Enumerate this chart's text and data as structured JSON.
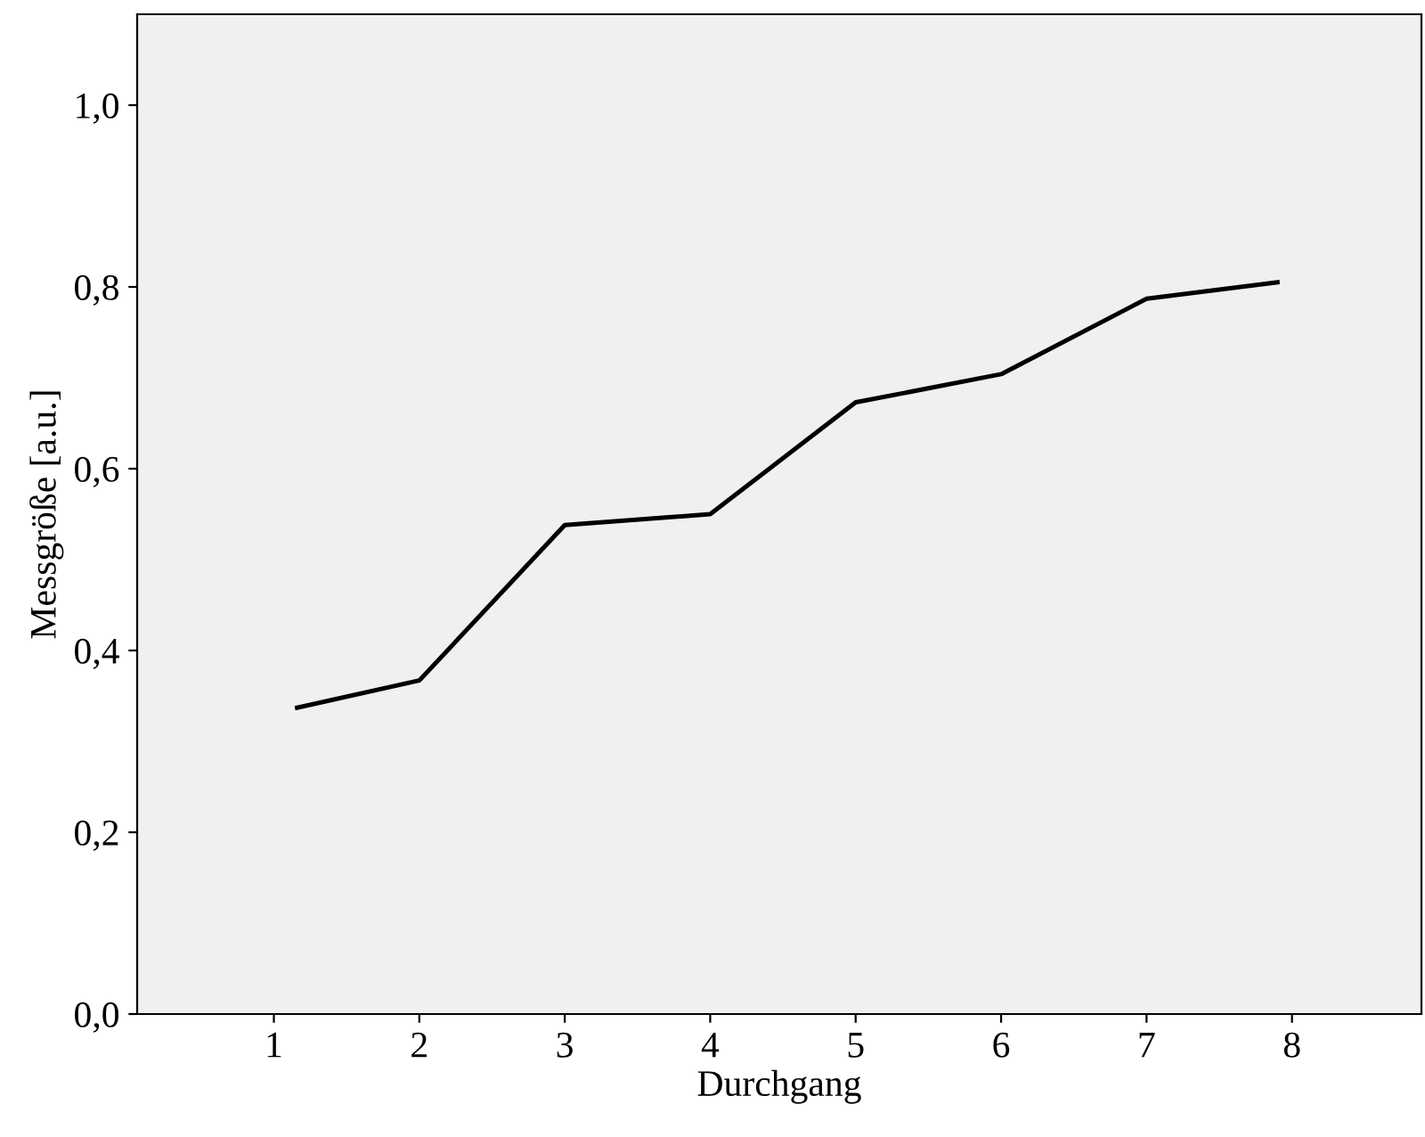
{
  "chart_data": {
    "type": "line",
    "xlabel": "Durchgang",
    "ylabel": "Messgröße [a.u.]",
    "x": [
      1.16,
      2,
      3,
      4,
      5,
      6,
      7,
      7.9
    ],
    "series": [
      {
        "color": "#000000",
        "values": [
          0.337,
          0.367,
          0.538,
          0.55,
          0.673,
          0.704,
          0.787,
          0.805
        ]
      }
    ],
    "xlim": [
      0.06,
      8.89
    ],
    "xticks": [
      1,
      2,
      3,
      4,
      5,
      6,
      7,
      8
    ],
    "ylim": [
      0,
      1.1
    ],
    "yticks": [
      {
        "value": 0,
        "label": "0,0"
      },
      {
        "value": 0.2,
        "label": "0,2"
      },
      {
        "value": 0.4,
        "label": "0,4"
      },
      {
        "value": 0.6,
        "label": "0,6"
      },
      {
        "value": 0.8,
        "label": "0,8"
      },
      {
        "value": 1.0,
        "label": "1,0"
      }
    ],
    "grid": false,
    "legend": false,
    "marker": "none",
    "line_style": "solid"
  }
}
